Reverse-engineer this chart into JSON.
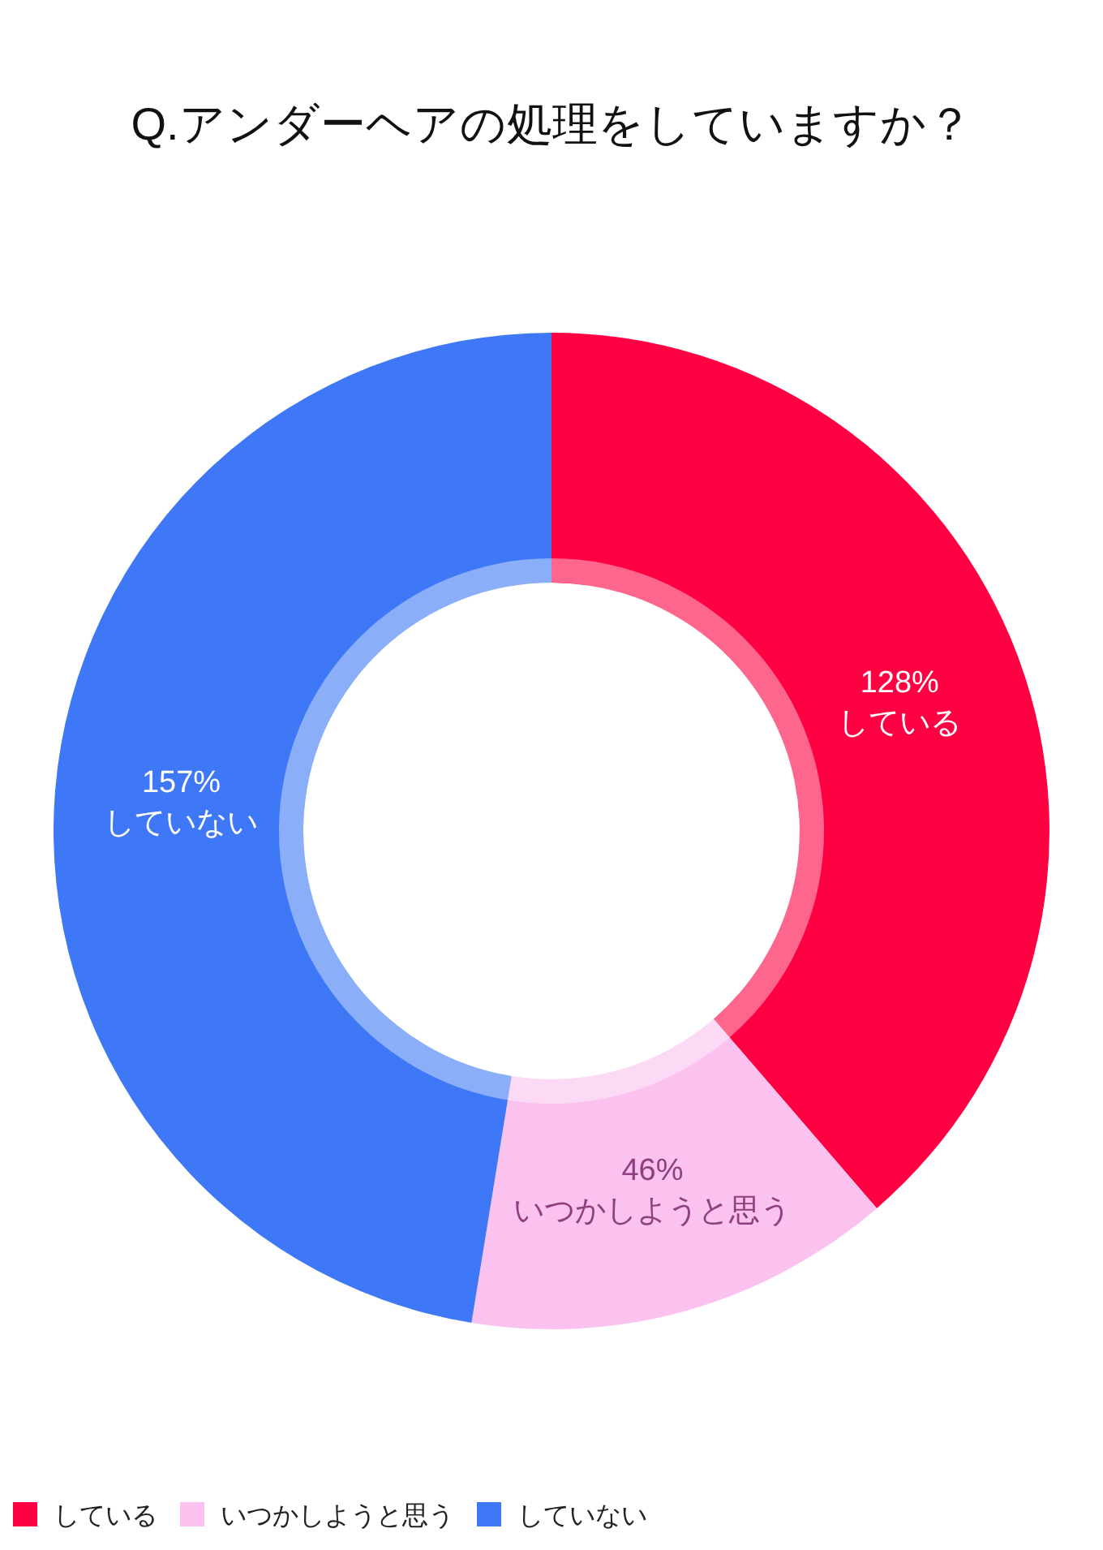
{
  "chart_data": {
    "type": "donut",
    "title": "Q.アンダーヘアの処理をしていますか？",
    "categories": [
      "している",
      "いつかしようと思う",
      "していない"
    ],
    "values": [
      128,
      46,
      157
    ],
    "colors": [
      "#ff0043",
      "#fbc2f0",
      "#3f78f6"
    ],
    "value_labels": [
      "128%",
      "46%",
      "157%"
    ],
    "legend": "bottom left"
  }
}
